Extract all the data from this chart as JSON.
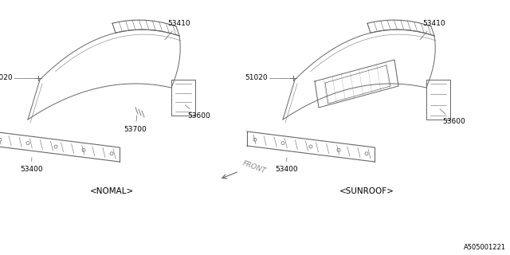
{
  "bg_color": "#ffffff",
  "diagram_label": "A505001221",
  "front_label": "FRONT",
  "left_variant_label": "<NOMAL>",
  "right_variant_label": "<SUNROOF>",
  "line_color": "#666666",
  "text_color": "#000000",
  "label_fontsize": 6.5,
  "variant_fontsize": 7.5,
  "diagram_id_fontsize": 6,
  "note_color": "#aaaaaa"
}
